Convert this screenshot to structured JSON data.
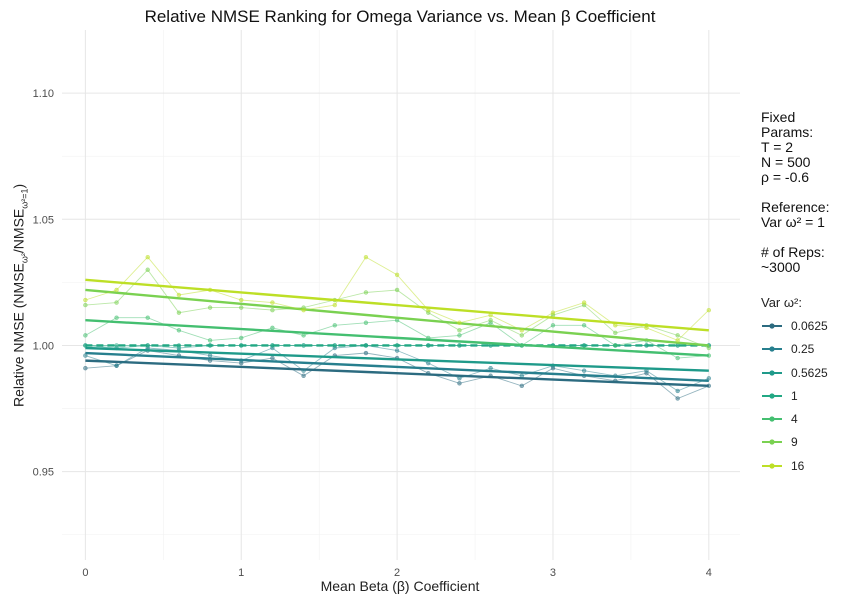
{
  "chart_data": {
    "type": "line",
    "title": "Relative NMSE Ranking for Omega Variance vs. Mean β Coefficient",
    "xlabel": "Mean Beta (β) Coefficient",
    "ylabel_main": "Relative NMSE (NMSE",
    "ylabel_sub1": "ω²",
    "ylabel_mid": "/NMSE",
    "ylabel_sub2": "ω²=1",
    "ylabel_end": ")",
    "xlim": [
      -0.15,
      4.2
    ],
    "ylim": [
      0.915,
      1.125
    ],
    "x_ticks": [
      0,
      1,
      2,
      3,
      4
    ],
    "y_ticks": [
      0.95,
      1.0,
      1.05,
      1.1
    ],
    "y_tick_labels": [
      "0.95",
      "1.00",
      "1.05",
      "1.10"
    ],
    "x": [
      0,
      0.2,
      0.4,
      0.6,
      0.8,
      1.0,
      1.2,
      1.4,
      1.6,
      1.8,
      2.0,
      2.2,
      2.4,
      2.6,
      2.8,
      3.0,
      3.2,
      3.4,
      3.6,
      3.8,
      4.0
    ],
    "series": [
      {
        "name": "0.0625",
        "color": "#2c6b80",
        "values": [
          0.991,
          0.992,
          0.998,
          0.996,
          0.994,
          0.993,
          0.995,
          0.988,
          0.996,
          0.997,
          0.995,
          0.989,
          0.985,
          0.988,
          0.984,
          0.991,
          0.988,
          0.986,
          0.989,
          0.979,
          0.984
        ],
        "trend": [
          0.994,
          0.984
        ]
      },
      {
        "name": "0.25",
        "color": "#277f8e",
        "values": [
          0.996,
          0.992,
          0.999,
          0.998,
          0.996,
          0.994,
          0.999,
          0.99,
          0.999,
          1.0,
          0.998,
          0.993,
          0.987,
          0.991,
          0.988,
          0.992,
          0.99,
          0.988,
          0.99,
          0.982,
          0.987
        ],
        "trend": [
          0.997,
          0.986
        ]
      },
      {
        "name": "0.5625",
        "color": "#1f9a8a",
        "values": [
          1.0,
          0.999,
          1.0,
          0.999,
          1.0,
          1.0,
          1.0,
          1.0,
          1.0,
          1.0,
          1.0,
          1.0,
          1.0,
          1.0,
          1.0,
          1.0,
          1.0,
          1.0,
          1.0,
          1.0,
          1.0
        ],
        "trend": [
          0.999,
          0.99
        ]
      },
      {
        "name": "1",
        "color": "#22a884",
        "dashed": true,
        "values": [
          1.0,
          1.0,
          1.0,
          1.0,
          1.0,
          1.0,
          1.0,
          1.0,
          1.0,
          1.0,
          1.0,
          1.0,
          1.0,
          1.0,
          1.0,
          1.0,
          1.0,
          1.0,
          1.0,
          1.0,
          1.0
        ],
        "trend": [
          1.0,
          1.0
        ]
      },
      {
        "name": "4",
        "color": "#44bf70",
        "values": [
          1.004,
          1.011,
          1.011,
          1.006,
          1.002,
          1.003,
          1.007,
          1.004,
          1.008,
          1.009,
          1.01,
          1.003,
          1.004,
          1.009,
          1.0,
          1.008,
          1.008,
          1.0,
          1.002,
          0.995,
          0.996
        ],
        "trend": [
          1.01,
          0.996
        ]
      },
      {
        "name": "9",
        "color": "#7ad151",
        "values": [
          1.016,
          1.017,
          1.03,
          1.013,
          1.015,
          1.015,
          1.014,
          1.015,
          1.018,
          1.021,
          1.022,
          1.013,
          1.006,
          1.01,
          1.004,
          1.012,
          1.016,
          1.005,
          1.008,
          1.004,
          0.999
        ],
        "trend": [
          1.022,
          1.0
        ]
      },
      {
        "name": "16",
        "color": "#bddf26",
        "values": [
          1.018,
          1.022,
          1.035,
          1.02,
          1.022,
          1.018,
          1.017,
          1.014,
          1.016,
          1.035,
          1.028,
          1.014,
          1.009,
          1.012,
          1.006,
          1.013,
          1.017,
          1.008,
          1.007,
          1.002,
          1.014
        ],
        "trend": [
          1.026,
          1.006
        ]
      }
    ],
    "legend_title": "Var ω²:",
    "legend_position": "right",
    "grid": true
  },
  "annotation": {
    "lines": [
      "Fixed",
      "Params:",
      "T = 2",
      "N = 500",
      "ρ = -0.6",
      "",
      "Reference:",
      "Var ω² = 1",
      "",
      "# of Reps:",
      "~3000"
    ]
  }
}
